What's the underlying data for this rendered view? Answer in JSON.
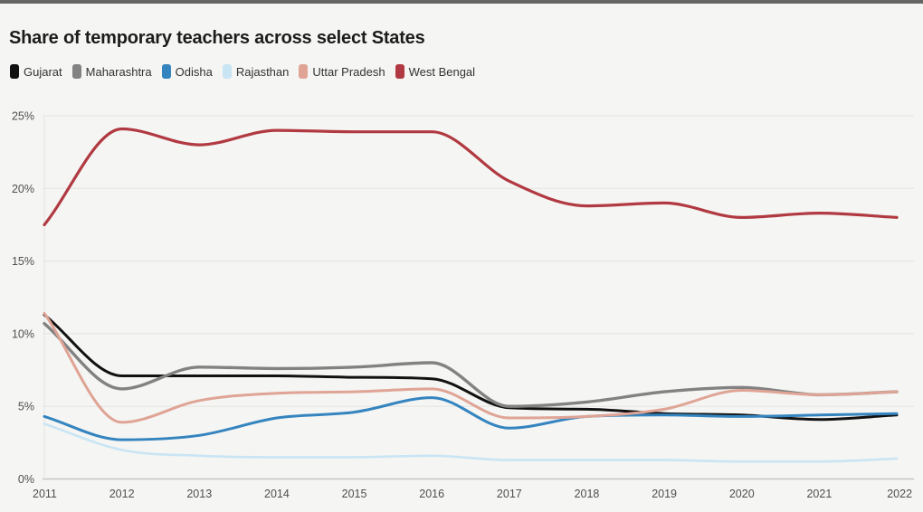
{
  "page": {
    "background": "#f5f5f3",
    "topbar_color": "#656565"
  },
  "header": {
    "title": "Share of temporary teachers across select States"
  },
  "legend": {
    "position": "top",
    "items": [
      {
        "label": "Gujarat",
        "color": "#111111"
      },
      {
        "label": "Maharashtra",
        "color": "#828282"
      },
      {
        "label": "Odisha",
        "color": "#3484bf"
      },
      {
        "label": "Rajasthan",
        "color": "#c9e5f4"
      },
      {
        "label": "Uttar Pradesh",
        "color": "#dfa495"
      },
      {
        "label": "West Bengal",
        "color": "#b13941"
      }
    ]
  },
  "chart_data": {
    "type": "line",
    "title": "Share of temporary teachers across select States",
    "xlabel": "",
    "ylabel": "",
    "x": [
      2011,
      2012,
      2013,
      2014,
      2015,
      2016,
      2017,
      2018,
      2019,
      2020,
      2021,
      2022
    ],
    "series": [
      {
        "name": "Gujarat",
        "color": "#111111",
        "width": 3,
        "values": [
          11.3,
          7.1,
          7.1,
          7.1,
          7.0,
          6.9,
          4.9,
          4.8,
          4.5,
          4.4,
          4.1,
          4.4
        ]
      },
      {
        "name": "Maharashtra",
        "color": "#828282",
        "width": 3.4,
        "values": [
          10.7,
          6.2,
          7.7,
          7.6,
          7.7,
          8.0,
          5.0,
          5.3,
          6.0,
          6.3,
          5.8,
          6.0
        ]
      },
      {
        "name": "Odisha",
        "color": "#3484bf",
        "width": 3,
        "values": [
          4.3,
          2.7,
          3.0,
          4.2,
          4.6,
          5.6,
          3.5,
          4.3,
          4.4,
          4.3,
          4.4,
          4.5
        ]
      },
      {
        "name": "Rajasthan",
        "color": "#c9e5f4",
        "width": 2.6,
        "values": [
          3.8,
          2.0,
          1.6,
          1.5,
          1.5,
          1.6,
          1.3,
          1.3,
          1.3,
          1.2,
          1.2,
          1.4
        ]
      },
      {
        "name": "Uttar Pradesh",
        "color": "#dfa495",
        "width": 3,
        "values": [
          11.4,
          3.9,
          5.4,
          5.9,
          6.0,
          6.2,
          4.2,
          4.3,
          4.8,
          6.1,
          5.8,
          6.0
        ]
      },
      {
        "name": "West Bengal",
        "color": "#b13941",
        "width": 3.2,
        "values": [
          17.5,
          24.1,
          23.0,
          24.0,
          23.9,
          23.9,
          20.5,
          18.8,
          19.0,
          18.0,
          18.3,
          18.0
        ]
      }
    ],
    "ylim": [
      0,
      25
    ],
    "yticks": [
      {
        "value": 0,
        "label": "0%"
      },
      {
        "value": 5,
        "label": "5%"
      },
      {
        "value": 10,
        "label": "10%"
      },
      {
        "value": 15,
        "label": "15%"
      },
      {
        "value": 20,
        "label": "20%"
      },
      {
        "value": 25,
        "label": "25%"
      }
    ],
    "xtick_labels": [
      "2011",
      "2012",
      "2013",
      "2014",
      "2015",
      "2016",
      "2017",
      "2018",
      "2019",
      "2020",
      "2021",
      "2022"
    ],
    "grid": "horizontal",
    "grid_color": "#e3e3e0",
    "baseline_color": "#c6c6c3",
    "legend_position": "top",
    "interpolation": "monotone"
  }
}
